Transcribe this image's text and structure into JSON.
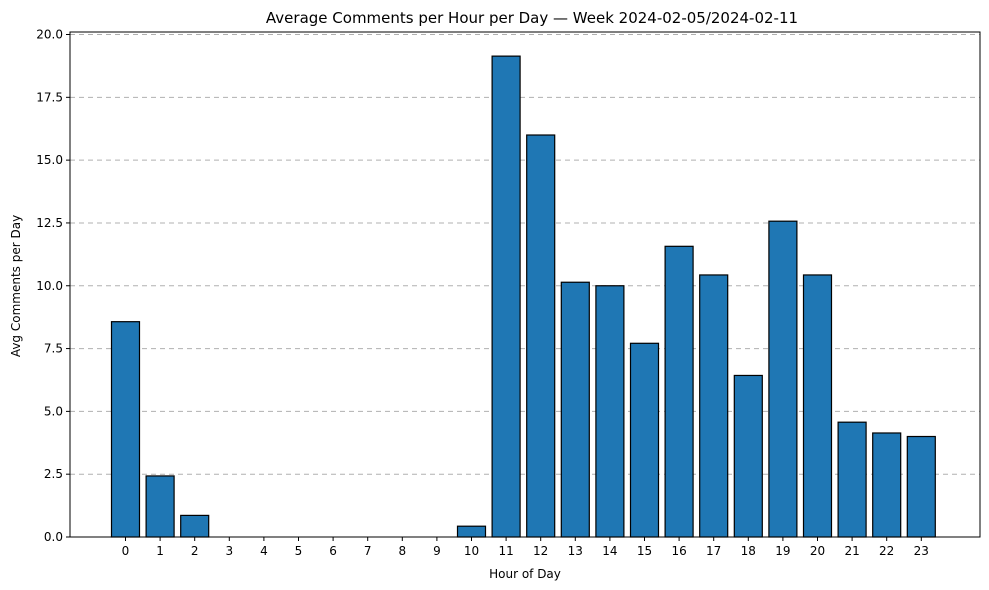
{
  "chart_data": {
    "type": "bar",
    "title": "Average Comments per Hour per Day — Week 2024-02-05/2024-02-11",
    "xlabel": "Hour of Day",
    "ylabel": "Avg Comments per Day",
    "categories": [
      "0",
      "1",
      "2",
      "3",
      "4",
      "5",
      "6",
      "7",
      "8",
      "9",
      "10",
      "11",
      "12",
      "13",
      "14",
      "15",
      "16",
      "17",
      "18",
      "19",
      "20",
      "21",
      "22",
      "23"
    ],
    "values": [
      8.57,
      2.43,
      0.86,
      0,
      0,
      0,
      0,
      0,
      0,
      0,
      0.43,
      19.14,
      16.0,
      10.14,
      10.0,
      7.71,
      11.57,
      10.43,
      6.43,
      12.57,
      10.43,
      4.57,
      4.14,
      4.0
    ],
    "ylim": [
      0,
      20.1
    ],
    "yticks": [
      0.0,
      2.5,
      5.0,
      7.5,
      10.0,
      12.5,
      15.0,
      17.5,
      20.0
    ],
    "ytick_labels": [
      "0.0",
      "2.5",
      "5.0",
      "7.5",
      "10.0",
      "12.5",
      "15.0",
      "17.5",
      "20.0"
    ],
    "grid": "y-dashed",
    "bar_color": "#1f77b4",
    "edge_color": "#000000"
  }
}
